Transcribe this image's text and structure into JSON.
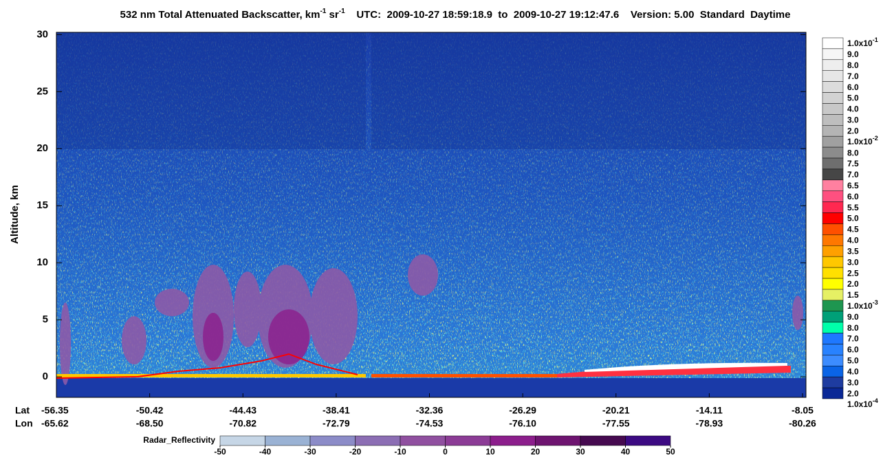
{
  "chart_data": {
    "type": "curtain",
    "title": {
      "main": "532 nm Total Attenuated Backscatter, km",
      "sup1": "-1",
      "unit2": " sr",
      "sup2": "-1"
    },
    "utc": "UTC:  2009-10-27 18:59:18.9  to  2009-10-27 19:12:47.6",
    "version": "Version: 5.00  Standard  Daytime",
    "y_label": "Altitude, km",
    "ylim": [
      -1.8,
      30.2
    ],
    "yticks": [
      0,
      5,
      10,
      15,
      20,
      25,
      30
    ],
    "x_row_labels": [
      "Lat",
      "Lon"
    ],
    "lat": [
      "-56.35",
      "-50.42",
      "-44.43",
      "-38.41",
      "-32.36",
      "-26.29",
      "-20.21",
      "-14.11",
      "-8.05"
    ],
    "lon": [
      "-65.62",
      "-68.50",
      "-70.82",
      "-72.79",
      "-74.53",
      "-76.10",
      "-77.55",
      "-78.93",
      "-80.26"
    ],
    "colorbar": {
      "labels": [
        {
          "text": "1.0x10",
          "sup": "-1"
        },
        "9.0",
        "8.0",
        "7.0",
        "6.0",
        "5.0",
        "4.0",
        "3.0",
        "2.0",
        {
          "text": "1.0x10",
          "sup": "-2"
        },
        "8.0",
        "7.5",
        "7.0",
        "6.5",
        "6.0",
        "5.5",
        "5.0",
        "4.5",
        "4.0",
        "3.5",
        "3.0",
        "2.5",
        "2.0",
        "1.5",
        {
          "text": "1.0x10",
          "sup": "-3"
        },
        "9.0",
        "8.0",
        "7.0",
        "6.0",
        "5.0",
        "4.0",
        "3.0",
        "2.0",
        {
          "text": "1.0x10",
          "sup": "-4"
        }
      ],
      "colors": [
        "#ffffff",
        "#f6f6f6",
        "#eeeeee",
        "#e6e6e6",
        "#dcdcdc",
        "#d2d2d2",
        "#c8c8c8",
        "#bebebe",
        "#b4b4b4",
        "#a0a0a0",
        "#8c8c8c",
        "#6e6e6e",
        "#464646",
        "#ff80a0",
        "#ff5080",
        "#ff2850",
        "#ff0000",
        "#ff5000",
        "#ff7800",
        "#ffa000",
        "#ffc800",
        "#ffe000",
        "#ffff00",
        "#e6f064",
        "#1e9650",
        "#00a078",
        "#00ffaa",
        "#1e78ff",
        "#2882ff",
        "#3c8cff",
        "#0a64e6",
        "#1e3ca0",
        "#0a2896"
      ]
    },
    "radar": {
      "label": "Radar_Reflectivity",
      "lim": [
        -50,
        50
      ],
      "ticks": [
        -50,
        -40,
        -30,
        -20,
        -10,
        0,
        10,
        20,
        30,
        40,
        50
      ],
      "colors": [
        "#c6d6e6",
        "#9ab2d4",
        "#8c8cc8",
        "#8c6eb4",
        "#9050a0",
        "#8c3c96",
        "#8c1e8c",
        "#6e1470",
        "#460a50",
        "#3c0a82"
      ]
    }
  }
}
